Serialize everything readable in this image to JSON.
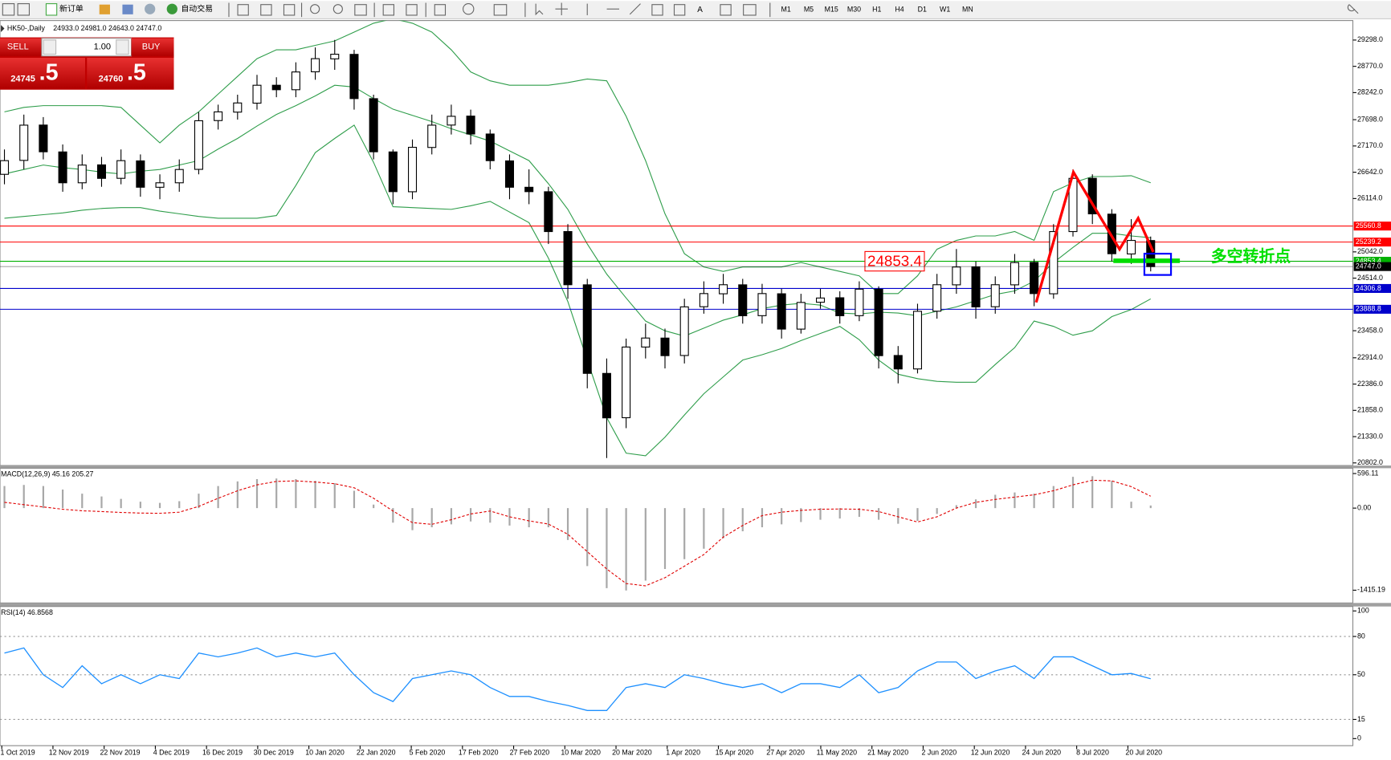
{
  "toolbar": {
    "new_order": "新订单",
    "auto_trading": "自动交易",
    "timeframes": [
      "M1",
      "M5",
      "M15",
      "M30",
      "H1",
      "H4",
      "D1",
      "W1",
      "MN"
    ]
  },
  "trade_panel": {
    "sell": "SELL",
    "lots": "1.00",
    "buy": "BUY",
    "bid_main": "24745",
    "bid_frac": ".5",
    "ask_main": "24760",
    "ask_frac": ".5"
  },
  "chart": {
    "type": "candlestick",
    "symbol": "HK50-,Daily",
    "ohlc_header": "24933.0 24981.0 24643.0 24747.0",
    "x_labels": [
      "1 Oct 2019",
      "12 Nov 2019",
      "22 Nov 2019",
      "4 Dec 2019",
      "16 Dec 2019",
      "30 Dec 2019",
      "10 Jan 2020",
      "22 Jan 2020",
      "5 Feb 2020",
      "17 Feb 2020",
      "27 Feb 2020",
      "10 Mar 2020",
      "20 Mar 2020",
      "1 Apr 2020",
      "15 Apr 2020",
      "27 Apr 2020",
      "11 May 2020",
      "21 May 2020",
      "2 Jun 2020",
      "12 Jun 2020",
      "24 Jun 2020",
      "8 Jul 2020",
      "20 Jul 2020"
    ],
    "open": [
      26600,
      26880,
      27590,
      27050,
      26430,
      26790,
      26520,
      26870,
      26340,
      26430,
      26700,
      27680,
      27850,
      28030,
      28390,
      28300,
      28660,
      28920,
      29010,
      28120,
      27050,
      26250,
      27140,
      27590,
      27770,
      27410,
      26870,
      26340,
      26250,
      25450,
      24380,
      22600,
      21710,
      23130,
      23310,
      22960,
      23940,
      24200,
      24380,
      23760,
      24200,
      23490,
      24030,
      24120,
      23760,
      24290,
      22960,
      22690,
      23850,
      24380,
      24740,
      23940,
      24380,
      24830,
      24200,
      25450,
      26520,
      25800,
      25000,
      25270
    ],
    "high": [
      27100,
      27800,
      27750,
      27200,
      27000,
      26950,
      27100,
      27000,
      26600,
      26900,
      27850,
      28000,
      28200,
      28600,
      28550,
      28850,
      29150,
      29300,
      29100,
      28200,
      27100,
      27300,
      27800,
      28000,
      27900,
      27500,
      27000,
      26700,
      26350,
      25600,
      24500,
      22900,
      23300,
      23600,
      23500,
      24100,
      24450,
      24600,
      24500,
      24400,
      24300,
      24200,
      24300,
      24250,
      24450,
      24350,
      23150,
      24000,
      24600,
      25100,
      24850,
      24550,
      25000,
      24900,
      25600,
      26700,
      26600,
      25900,
      25700,
      25350
    ],
    "low": [
      26400,
      26700,
      26900,
      26250,
      26300,
      26350,
      26400,
      26150,
      26100,
      26250,
      26600,
      27500,
      27700,
      27900,
      28150,
      28150,
      28500,
      28700,
      27900,
      26900,
      26000,
      26100,
      27000,
      27400,
      27200,
      26700,
      26100,
      26000,
      25200,
      24100,
      22300,
      20900,
      21500,
      22900,
      22700,
      22800,
      23800,
      24000,
      23600,
      23600,
      23300,
      23400,
      23900,
      23600,
      23650,
      22700,
      22400,
      22600,
      23700,
      24200,
      23700,
      23800,
      24200,
      23950,
      24100,
      25350,
      25600,
      24850,
      24800,
      24650
    ],
    "close": [
      26875,
      27588,
      27053,
      26430,
      26786,
      26519,
      26875,
      26341,
      26430,
      26697,
      27677,
      27855,
      28034,
      28390,
      28300,
      28657,
      28924,
      29013,
      28122,
      27053,
      26252,
      27143,
      27588,
      27766,
      27410,
      26875,
      26341,
      26252,
      25450,
      24382,
      22601,
      21707,
      23130,
      23311,
      22957,
      23937,
      24204,
      24382,
      23759,
      24204,
      23491,
      24026,
      24115,
      23759,
      24293,
      22957,
      22690,
      23848,
      24382,
      24738,
      23937,
      24382,
      24827,
      24204,
      25450,
      26519,
      25806,
      25005,
      25272,
      24747
    ],
    "bb_upper": [
      27855,
      27945,
      27980,
      27980,
      27980,
      27980,
      27945,
      27588,
      27232,
      27588,
      27855,
      28212,
      28568,
      28924,
      29102,
      29102,
      29191,
      29280,
      29458,
      29636,
      29725,
      29636,
      29458,
      29102,
      28657,
      28479,
      28390,
      28390,
      28390,
      28443,
      28514,
      28479,
      27766,
      26876,
      25807,
      25006,
      24739,
      24650,
      24739,
      24739,
      24739,
      24828,
      24739,
      24650,
      24561,
      24205,
      24205,
      24561,
      25095,
      25273,
      25362,
      25362,
      25451,
      25273,
      26253,
      26431,
      26555,
      26555,
      26573,
      26431
    ],
    "bb_middle": [
      26609,
      26698,
      26787,
      26733,
      26698,
      26644,
      26609,
      26662,
      26698,
      26787,
      26876,
      27107,
      27321,
      27570,
      27802,
      27980,
      28176,
      28390,
      28354,
      28123,
      27909,
      27784,
      27659,
      27517,
      27392,
      27268,
      27072,
      26876,
      26413,
      25896,
      25202,
      24596,
      24115,
      23652,
      23456,
      23349,
      23510,
      23670,
      23777,
      23901,
      23972,
      24008,
      23972,
      23812,
      23795,
      23830,
      23812,
      23759,
      23848,
      23937,
      24062,
      24187,
      24258,
      24454,
      24828,
      25131,
      25415,
      25415,
      25362,
      25326
    ],
    "bb_lower": [
      25718,
      25753,
      25789,
      25825,
      25878,
      25914,
      25932,
      25932,
      25861,
      25807,
      25753,
      25718,
      25718,
      25718,
      25771,
      26377,
      27036,
      27321,
      27588,
      26840,
      25950,
      25932,
      25914,
      25896,
      25968,
      26057,
      25843,
      25629,
      24917,
      24044,
      22869,
      21711,
      20998,
      20945,
      21319,
      21764,
      22192,
      22530,
      22869,
      22975,
      23100,
      23260,
      23403,
      23546,
      23278,
      22869,
      22584,
      22495,
      22441,
      22423,
      22423,
      22780,
      23118,
      23652,
      23546,
      23368,
      23457,
      23741,
      23884,
      24098
    ],
    "bb_color": "#2e9d4a",
    "ylim": [
      20749,
      29690
    ],
    "yticks": [
      {
        "value": 29298,
        "label": "29298.0"
      },
      {
        "value": 28770,
        "label": "28770.0"
      },
      {
        "value": 28242,
        "label": "28242.0"
      },
      {
        "value": 27698,
        "label": "27698.0"
      },
      {
        "value": 27170,
        "label": "27170.0"
      },
      {
        "value": 26642,
        "label": "26642.0"
      },
      {
        "value": 26114,
        "label": "26114.0"
      },
      {
        "value": 25042,
        "label": "25042.0"
      },
      {
        "value": 24514,
        "label": "24514.0"
      },
      {
        "value": 23458,
        "label": "23458.0"
      },
      {
        "value": 22914,
        "label": "22914.0"
      },
      {
        "value": 22386,
        "label": "22386.0"
      },
      {
        "value": 21858,
        "label": "21858.0"
      },
      {
        "value": 21330,
        "label": "21330.0"
      },
      {
        "value": 20802,
        "label": "20802.0"
      }
    ],
    "levels": [
      {
        "value": 25560.8,
        "color": "#ff0000"
      },
      {
        "value": 25239.2,
        "color": "#ff0000"
      },
      {
        "value": 24853.4,
        "color": "#00b000",
        "callout": true
      },
      {
        "value": 24747,
        "label": "24747.0",
        "color": "#000000"
      },
      {
        "value": 24306.8,
        "color": "#0000cc"
      },
      {
        "value": 23888.8,
        "color": "#0000cc"
      }
    ],
    "annotation": "多空转折点",
    "macd": {
      "title": "MACD(12,26,9) 45.16 205.27",
      "color": "#a8a8a8",
      "signal_color": "#e00000",
      "main": [
        380,
        400,
        380,
        320,
        250,
        200,
        160,
        110,
        90,
        120,
        250,
        380,
        460,
        500,
        510,
        500,
        470,
        430,
        300,
        60,
        -250,
        -380,
        -330,
        -280,
        -230,
        -250,
        -300,
        -330,
        -330,
        -550,
        -1000,
        -1380,
        -1420,
        -1250,
        -1050,
        -880,
        -700,
        -520,
        -400,
        -330,
        -280,
        -240,
        -200,
        -180,
        -150,
        -200,
        -270,
        -220,
        -100,
        50,
        150,
        230,
        270,
        250,
        380,
        540,
        550,
        470,
        110,
        45
      ],
      "signal": [
        100,
        60,
        20,
        -20,
        -45,
        -60,
        -75,
        -85,
        -90,
        -70,
        30,
        170,
        300,
        400,
        460,
        470,
        450,
        420,
        350,
        170,
        -50,
        -250,
        -280,
        -200,
        -100,
        -50,
        -150,
        -220,
        -275,
        -450,
        -750,
        -1050,
        -1300,
        -1340,
        -1200,
        -1000,
        -800,
        -500,
        -300,
        -130,
        -70,
        -40,
        -20,
        -15,
        -20,
        -60,
        -150,
        -240,
        -150,
        0,
        100,
        150,
        190,
        230,
        300,
        400,
        480,
        470,
        370,
        205
      ],
      "ylim": [
        -1635,
        688
      ],
      "yticks": [
        596.11,
        {
          "value": 0,
          "label": "0.00"
        },
        -1415.19
      ]
    },
    "rsi": {
      "title": "RSI(14) 46.8568",
      "color": "#1e90ff",
      "values": [
        67,
        71,
        50,
        40,
        57,
        43,
        50,
        43,
        50,
        47,
        67,
        64,
        67,
        71,
        64,
        67,
        64,
        67,
        50,
        36,
        29,
        47,
        50,
        53,
        50,
        40,
        33,
        33,
        29,
        26,
        22,
        22,
        40,
        43,
        40,
        50,
        47,
        43,
        40,
        43,
        36,
        43,
        43,
        40,
        50,
        36,
        40,
        53,
        60,
        60,
        47,
        53,
        57,
        47,
        64,
        64,
        57,
        50,
        51,
        46.86
      ],
      "ylim": [
        0,
        100
      ],
      "yticks": [
        100,
        80,
        50,
        15,
        0
      ]
    }
  }
}
